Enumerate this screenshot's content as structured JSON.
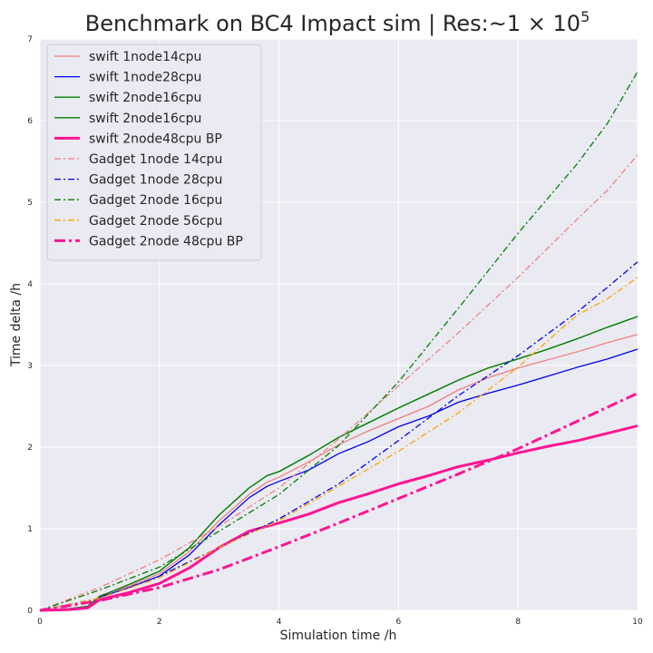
{
  "chart_data": {
    "type": "line",
    "title": "Benchmark on BC4 Impact sim | Res:~1 × 10",
    "title_superscript": "5",
    "xlabel": "Simulation time /h",
    "ylabel": "Time delta /h",
    "xlim": [
      0,
      10
    ],
    "ylim": [
      0,
      7
    ],
    "xticks": [
      0,
      2,
      4,
      6,
      8,
      10
    ],
    "yticks": [
      0,
      1,
      2,
      3,
      4,
      5,
      6,
      7
    ],
    "grid": true,
    "legend_position": "top-left",
    "background": "#eaeaf2",
    "series": [
      {
        "name": "swift 1node14cpu",
        "color": "#f08080",
        "style": "solid",
        "width": 1.3,
        "points": [
          [
            0,
            0
          ],
          [
            0.5,
            0.02
          ],
          [
            0.8,
            0.05
          ],
          [
            1,
            0.18
          ],
          [
            1.5,
            0.3
          ],
          [
            2,
            0.45
          ],
          [
            2.5,
            0.72
          ],
          [
            3,
            1.1
          ],
          [
            3.5,
            1.42
          ],
          [
            3.8,
            1.57
          ],
          [
            4,
            1.63
          ],
          [
            4.5,
            1.82
          ],
          [
            5,
            2.03
          ],
          [
            5.5,
            2.2
          ],
          [
            6,
            2.35
          ],
          [
            6.5,
            2.5
          ],
          [
            7,
            2.7
          ],
          [
            7.5,
            2.85
          ],
          [
            8,
            2.97
          ],
          [
            8.5,
            3.07
          ],
          [
            9,
            3.17
          ],
          [
            9.5,
            3.28
          ],
          [
            10,
            3.38
          ]
        ]
      },
      {
        "name": "swift 1node28cpu",
        "color": "#0000ee",
        "style": "solid",
        "width": 1.3,
        "points": [
          [
            0,
            0
          ],
          [
            0.5,
            0.02
          ],
          [
            0.8,
            0.05
          ],
          [
            1,
            0.16
          ],
          [
            1.5,
            0.28
          ],
          [
            2,
            0.42
          ],
          [
            2.5,
            0.68
          ],
          [
            3,
            1.05
          ],
          [
            3.5,
            1.38
          ],
          [
            3.8,
            1.52
          ],
          [
            4,
            1.58
          ],
          [
            4.5,
            1.72
          ],
          [
            5,
            1.92
          ],
          [
            5.5,
            2.07
          ],
          [
            6,
            2.25
          ],
          [
            6.5,
            2.38
          ],
          [
            7,
            2.55
          ],
          [
            7.5,
            2.66
          ],
          [
            8,
            2.76
          ],
          [
            8.5,
            2.87
          ],
          [
            9,
            2.98
          ],
          [
            9.5,
            3.08
          ],
          [
            10,
            3.2
          ]
        ]
      },
      {
        "name": "swift 2node16cpu",
        "color": "#008000",
        "style": "solid",
        "width": 1.3,
        "points": [
          [
            0,
            0
          ],
          [
            0.5,
            0.02
          ],
          [
            0.8,
            0.05
          ],
          [
            1,
            0.17
          ],
          [
            1.5,
            0.32
          ],
          [
            2,
            0.48
          ],
          [
            2.5,
            0.77
          ],
          [
            3,
            1.17
          ],
          [
            3.5,
            1.5
          ],
          [
            3.8,
            1.65
          ],
          [
            4,
            1.7
          ],
          [
            4.5,
            1.9
          ],
          [
            5,
            2.12
          ],
          [
            5.5,
            2.3
          ],
          [
            6,
            2.48
          ],
          [
            6.5,
            2.65
          ],
          [
            7,
            2.82
          ],
          [
            7.5,
            2.97
          ],
          [
            8,
            3.08
          ],
          [
            8.5,
            3.2
          ],
          [
            9,
            3.33
          ],
          [
            9.5,
            3.47
          ],
          [
            10,
            3.6
          ]
        ]
      },
      {
        "name": "swift 2node16cpu",
        "color": "#008000",
        "style": "solid",
        "width": 1.3,
        "points": [
          [
            0,
            0
          ],
          [
            0.5,
            0.02
          ],
          [
            0.8,
            0.05
          ],
          [
            1,
            0.17
          ],
          [
            1.5,
            0.32
          ],
          [
            2,
            0.48
          ],
          [
            2.5,
            0.77
          ],
          [
            3,
            1.17
          ],
          [
            3.5,
            1.5
          ],
          [
            3.8,
            1.65
          ],
          [
            4,
            1.7
          ],
          [
            4.5,
            1.9
          ],
          [
            5,
            2.12
          ],
          [
            5.5,
            2.3
          ],
          [
            6,
            2.48
          ],
          [
            6.5,
            2.65
          ],
          [
            7,
            2.82
          ],
          [
            7.5,
            2.97
          ],
          [
            8,
            3.08
          ],
          [
            8.5,
            3.2
          ],
          [
            9,
            3.33
          ],
          [
            9.5,
            3.47
          ],
          [
            10,
            3.6
          ]
        ]
      },
      {
        "name": "swift 2node48cpu BP",
        "color": "#ff1493",
        "style": "solid",
        "width": 3,
        "points": [
          [
            0,
            0
          ],
          [
            0.5,
            0.01
          ],
          [
            0.8,
            0.03
          ],
          [
            1,
            0.13
          ],
          [
            1.5,
            0.22
          ],
          [
            2,
            0.33
          ],
          [
            2.5,
            0.52
          ],
          [
            3,
            0.77
          ],
          [
            3.5,
            0.97
          ],
          [
            4,
            1.07
          ],
          [
            4.5,
            1.18
          ],
          [
            5,
            1.32
          ],
          [
            5.5,
            1.43
          ],
          [
            6,
            1.55
          ],
          [
            6.5,
            1.65
          ],
          [
            7,
            1.76
          ],
          [
            7.5,
            1.84
          ],
          [
            8,
            1.93
          ],
          [
            8.5,
            2.01
          ],
          [
            9,
            2.08
          ],
          [
            9.5,
            2.17
          ],
          [
            10,
            2.26
          ]
        ]
      },
      {
        "name": "Gadget 1node 14cpu",
        "color": "#f08080",
        "style": "dashdot",
        "width": 1.3,
        "points": [
          [
            0,
            0
          ],
          [
            1,
            0.28
          ],
          [
            2,
            0.62
          ],
          [
            3,
            1.03
          ],
          [
            4,
            1.5
          ],
          [
            5,
            2.1
          ],
          [
            6,
            2.75
          ],
          [
            7,
            3.4
          ],
          [
            8,
            4.08
          ],
          [
            9,
            4.8
          ],
          [
            9.5,
            5.15
          ],
          [
            10,
            5.58
          ]
        ]
      },
      {
        "name": "Gadget 1node 28cpu",
        "color": "#0000ee",
        "style": "dashdot",
        "width": 1.3,
        "points": [
          [
            0,
            0
          ],
          [
            1,
            0.15
          ],
          [
            2,
            0.42
          ],
          [
            3,
            0.77
          ],
          [
            4,
            1.12
          ],
          [
            5,
            1.55
          ],
          [
            6,
            2.08
          ],
          [
            7,
            2.63
          ],
          [
            8,
            3.12
          ],
          [
            9,
            3.66
          ],
          [
            9.5,
            3.96
          ],
          [
            10,
            4.27
          ]
        ]
      },
      {
        "name": "Gadget 2node 16cpu",
        "color": "#008000",
        "style": "dashdot",
        "width": 1.3,
        "points": [
          [
            0,
            0
          ],
          [
            1,
            0.25
          ],
          [
            2,
            0.53
          ],
          [
            3,
            0.97
          ],
          [
            4,
            1.42
          ],
          [
            5,
            2.02
          ],
          [
            6,
            2.8
          ],
          [
            7,
            3.7
          ],
          [
            8,
            4.62
          ],
          [
            9,
            5.48
          ],
          [
            9.5,
            5.97
          ],
          [
            10,
            6.6
          ]
        ]
      },
      {
        "name": "Gadget 2node 56cpu",
        "color": "#ffa500",
        "style": "dashdot",
        "width": 1.3,
        "points": [
          [
            0,
            0
          ],
          [
            1,
            0.15
          ],
          [
            2,
            0.4
          ],
          [
            3,
            0.77
          ],
          [
            4,
            1.1
          ],
          [
            5,
            1.52
          ],
          [
            6,
            1.95
          ],
          [
            7,
            2.42
          ],
          [
            8,
            2.98
          ],
          [
            8.8,
            3.5
          ],
          [
            9,
            3.62
          ],
          [
            9.5,
            3.82
          ],
          [
            10,
            4.08
          ]
        ]
      },
      {
        "name": "Gadget 2node 48cpu BP",
        "color": "#ff1493",
        "style": "dashdot",
        "width": 3,
        "points": [
          [
            0,
            0
          ],
          [
            1,
            0.12
          ],
          [
            2,
            0.28
          ],
          [
            3,
            0.5
          ],
          [
            4,
            0.78
          ],
          [
            5,
            1.07
          ],
          [
            6,
            1.37
          ],
          [
            7,
            1.67
          ],
          [
            8,
            1.98
          ],
          [
            9,
            2.32
          ],
          [
            10,
            2.66
          ]
        ]
      }
    ]
  }
}
